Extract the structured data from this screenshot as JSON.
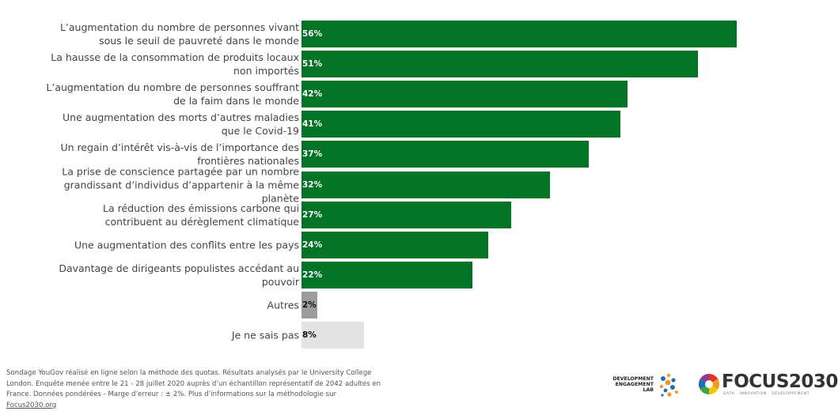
{
  "chart_data": {
    "type": "bar",
    "orientation": "horizontal",
    "categories": [
      "L’augmentation du nombre de personnes vivant sous le seuil de pauvreté dans le monde",
      "La hausse de la consommation de produits locaux non importés",
      "L’augmentation du nombre de personnes souffrant de la faim dans le monde",
      "Une augmentation des morts d’autres maladies que le Covid-19",
      "Un regain d’intérêt vis-à-vis de l’importance des frontières nationales",
      "La prise de conscience partagée par un nombre grandissant d’individus d’appartenir à la même planète",
      "La réduction des émissions carbone qui contribuent au dérèglement climatique",
      "Une augmentation des conflits entre les pays",
      "Davantage de dirigeants populistes accédant au pouvoir",
      "Autres",
      "Je ne sais pas"
    ],
    "values": [
      56,
      51,
      42,
      41,
      37,
      32,
      27,
      24,
      22,
      2,
      8
    ],
    "value_labels": [
      "56%",
      "51%",
      "42%",
      "41%",
      "37%",
      "32%",
      "27%",
      "24%",
      "22%",
      "2%",
      "8%"
    ],
    "bar_colors": [
      "#037426",
      "#037426",
      "#037426",
      "#037426",
      "#037426",
      "#037426",
      "#037426",
      "#037426",
      "#037426",
      "#9c9c9c",
      "#e3e3e3"
    ],
    "label_colors": [
      "#ffffff",
      "#ffffff",
      "#ffffff",
      "#ffffff",
      "#ffffff",
      "#ffffff",
      "#ffffff",
      "#ffffff",
      "#ffffff",
      "#111111",
      "#111111"
    ],
    "unit": "%"
  },
  "footer": {
    "note": "Sondage YouGov réalisé en ligne selon la méthode des quotas. Résultats analysés par le University College London. Enquête menée entre le 21 - 28 juillet 2020 auprès d’un échantillon représentatif de 2042 adultes en France. Données pondérées - Marge d’erreur : ± 2%. Plus d’informations sur la méthodologie sur",
    "link": "Focus2030.org"
  },
  "logos": {
    "del_line1": "DEVELOPMENT",
    "del_line2": "ENGAGEMENT",
    "del_line3": "LAB",
    "focus_name": "FOCUS2030",
    "focus_tag": "DATA · INNOVATION · DÉVELOPPEMENT"
  }
}
